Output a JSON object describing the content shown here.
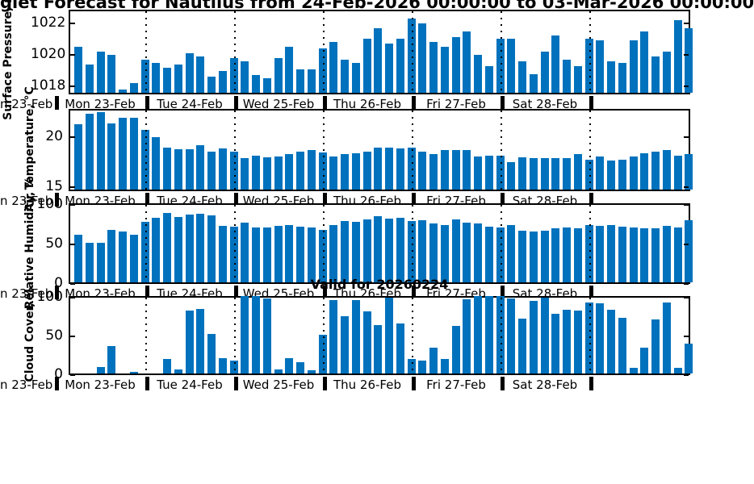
{
  "title": "glet Forecast for Nautilus from 24-Feb-2026 00:00:00 to 03-Mar-2026 00:00:00",
  "annotation": {
    "valid_text": "Valid for 20260224"
  },
  "x_axis": {
    "day_labels": [
      "Mon 23-Feb",
      "Tue 24-Feb",
      "Wed 25-Feb",
      "Thu 26-Feb",
      "Fri 27-Feb",
      "Sat 28-Feb"
    ],
    "left_edge_partial_label": "n 23-Feb"
  },
  "colors": {
    "bar": "#0072BD",
    "axis": "#000000",
    "background": "#ffffff"
  },
  "chart_data": [
    {
      "type": "bar",
      "name": "surface-pressure",
      "ylabel": "Surface Pressure, mb",
      "ytick_labels": [
        "1022",
        "1020",
        "1018"
      ],
      "ytick_values": [
        1022,
        1020,
        1018
      ],
      "ylim": [
        1017.5,
        1022.75
      ],
      "values": [
        1020.4,
        1019.3,
        1020.1,
        1019.9,
        1017.7,
        1018.1,
        1019.6,
        1019.4,
        1019.1,
        1019.3,
        1020.0,
        1019.8,
        1018.5,
        1018.9,
        1019.7,
        1019.5,
        1018.6,
        1018.4,
        1019.7,
        1020.4,
        1019.0,
        1019.0,
        1020.3,
        1020.7,
        1019.6,
        1019.4,
        1020.9,
        1021.6,
        1020.6,
        1020.9,
        1022.2,
        1021.9,
        1020.7,
        1020.4,
        1021.0,
        1021.4,
        1019.9,
        1019.2,
        1020.9,
        1020.9,
        1019.5,
        1018.7,
        1020.1,
        1021.1,
        1019.6,
        1019.2,
        1020.9,
        1020.8,
        1019.5,
        1019.4,
        1020.8,
        1021.4,
        1019.8,
        1020.1,
        1022.1,
        1021.6
      ]
    },
    {
      "type": "bar",
      "name": "air-temperature",
      "ylabel": "Air Temperature, °C",
      "ytick_labels": [
        "20",
        "15"
      ],
      "ytick_values": [
        20,
        15
      ],
      "ylim": [
        14.6,
        22.6
      ],
      "values": [
        21.1,
        22.1,
        22.3,
        21.2,
        21.7,
        21.7,
        20.5,
        19.8,
        18.8,
        18.6,
        18.6,
        19.0,
        18.4,
        18.7,
        18.4,
        17.7,
        18.0,
        17.8,
        17.9,
        18.1,
        18.4,
        18.5,
        18.3,
        17.9,
        18.1,
        18.2,
        18.4,
        18.8,
        18.8,
        18.7,
        18.8,
        18.4,
        18.1,
        18.5,
        18.5,
        18.5,
        17.9,
        18.0,
        18.0,
        17.3,
        17.8,
        17.7,
        17.7,
        17.7,
        17.7,
        18.1,
        17.6,
        17.9,
        17.5,
        17.6,
        17.9,
        18.2,
        18.4,
        18.5,
        18.0,
        18.1
      ]
    },
    {
      "type": "bar",
      "name": "relative-humidity",
      "ylabel": "Relative Humidity, %",
      "ytick_labels": [
        "100",
        "50",
        "0"
      ],
      "ytick_values": [
        100,
        50,
        0
      ],
      "ylim": [
        0,
        100
      ],
      "values": [
        60,
        50,
        50,
        66,
        64,
        60,
        77,
        82,
        88,
        83,
        86,
        87,
        85,
        71,
        70,
        76,
        69,
        69,
        71,
        72,
        70,
        69,
        66,
        73,
        78,
        77,
        80,
        84,
        81,
        82,
        78,
        79,
        75,
        73,
        80,
        76,
        75,
        70,
        69,
        72,
        65,
        64,
        65,
        68,
        69,
        68,
        73,
        71,
        73,
        70,
        69,
        68,
        68,
        71,
        69,
        79
      ]
    },
    {
      "type": "bar",
      "name": "cloud-cover",
      "ylabel": "Cloud Cover, %",
      "ytick_labels": [
        "100",
        "50",
        "0"
      ],
      "ytick_values": [
        100,
        50,
        0
      ],
      "ylim": [
        0,
        100
      ],
      "values": [
        0,
        0,
        8,
        35,
        0,
        2,
        0,
        0,
        19,
        5,
        81,
        83,
        51,
        20,
        17,
        100,
        100,
        97,
        5,
        20,
        15,
        4,
        50,
        95,
        74,
        95,
        80,
        63,
        98,
        65,
        19,
        17,
        33,
        19,
        62,
        96,
        100,
        100,
        100,
        97,
        71,
        94,
        98,
        77,
        82,
        81,
        92,
        91,
        82,
        72,
        7,
        33,
        70,
        92,
        7,
        39
      ]
    }
  ]
}
